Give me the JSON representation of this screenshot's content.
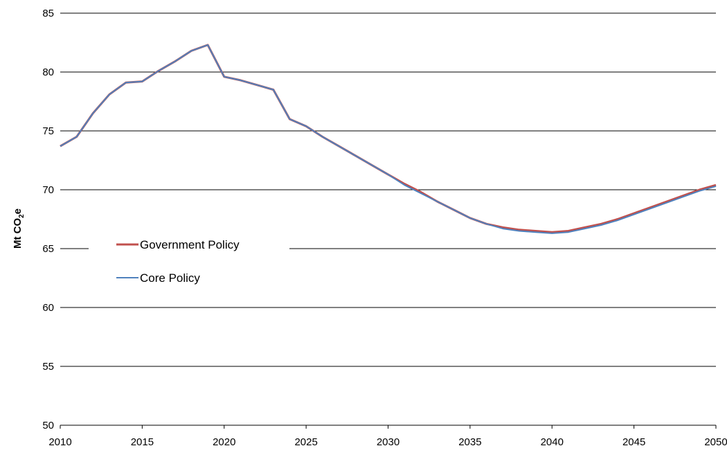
{
  "chart_data": {
    "type": "line",
    "title": "",
    "xlabel": "",
    "ylabel": "Mt CO2e",
    "ylabel_main": "Mt CO",
    "ylabel_sub": "2",
    "ylabel_tail": "e",
    "xlim": [
      2010,
      2050
    ],
    "ylim": [
      50,
      85
    ],
    "x_ticks": [
      2010,
      2015,
      2020,
      2025,
      2030,
      2035,
      2040,
      2045,
      2050
    ],
    "y_ticks": [
      50,
      55,
      60,
      65,
      70,
      75,
      80,
      85
    ],
    "grid": "horizontal",
    "legend_position": "center-left",
    "x": [
      2010,
      2011,
      2012,
      2013,
      2014,
      2015,
      2016,
      2017,
      2018,
      2019,
      2020,
      2021,
      2022,
      2023,
      2024,
      2025,
      2026,
      2027,
      2028,
      2029,
      2030,
      2031,
      2032,
      2033,
      2034,
      2035,
      2036,
      2037,
      2038,
      2039,
      2040,
      2041,
      2042,
      2043,
      2044,
      2045,
      2046,
      2047,
      2048,
      2049,
      2050
    ],
    "series": [
      {
        "name": "Government Policy",
        "color": "#c0504d",
        "values": [
          73.7,
          74.5,
          76.5,
          78.1,
          79.1,
          79.2,
          80.1,
          80.9,
          81.8,
          82.3,
          79.6,
          79.3,
          78.9,
          78.5,
          76.0,
          75.4,
          74.5,
          73.7,
          72.9,
          72.1,
          71.3,
          70.5,
          69.8,
          69.0,
          68.3,
          67.6,
          67.1,
          66.8,
          66.6,
          66.5,
          66.4,
          66.5,
          66.8,
          67.1,
          67.5,
          68.0,
          68.5,
          69.0,
          69.5,
          70.0,
          70.4
        ]
      },
      {
        "name": "Core Policy",
        "color": "#4f81bd",
        "values": [
          73.7,
          74.5,
          76.5,
          78.1,
          79.1,
          79.2,
          80.1,
          80.9,
          81.8,
          82.3,
          79.6,
          79.3,
          78.9,
          78.5,
          76.0,
          75.4,
          74.5,
          73.7,
          72.9,
          72.1,
          71.3,
          70.4,
          69.7,
          69.0,
          68.3,
          67.6,
          67.1,
          66.7,
          66.5,
          66.4,
          66.3,
          66.4,
          66.7,
          67.0,
          67.4,
          67.9,
          68.4,
          68.9,
          69.4,
          69.9,
          70.3
        ]
      }
    ]
  }
}
